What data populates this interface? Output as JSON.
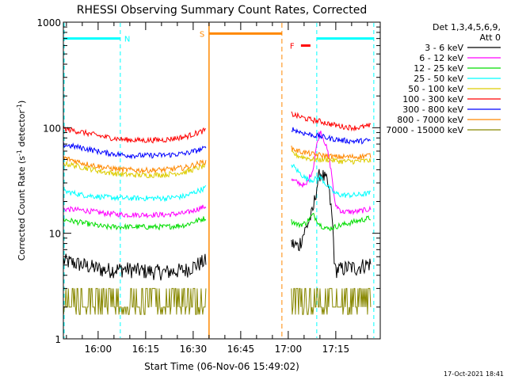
{
  "chart_data": {
    "type": "line",
    "title": "RHESSI Observing Summary Count Rates, Corrected",
    "xlabel": "Start Time (06-Nov-06 15:49:02)",
    "ylabel_main": "Corrected Count Rate (s",
    "ylabel_sup1": "-1",
    "ylabel_mid": " detector",
    "ylabel_sup2": "-1",
    "ylabel_end": ")",
    "yscale": "log",
    "ylim": [
      1,
      1000
    ],
    "yticks": [
      {
        "value": 1,
        "label": "1"
      },
      {
        "value": 10,
        "label": "10"
      },
      {
        "value": 100,
        "label": "100"
      },
      {
        "value": 1000,
        "label": "1000"
      }
    ],
    "xlim": [
      "15:49:02",
      "17:29:02"
    ],
    "xticks": [
      {
        "time": "16:00",
        "label": "16:00"
      },
      {
        "time": "16:15",
        "label": "16:15"
      },
      {
        "time": "16:30",
        "label": "16:30"
      },
      {
        "time": "16:45",
        "label": "16:45"
      },
      {
        "time": "17:00",
        "label": "17:00"
      },
      {
        "time": "17:15",
        "label": "17:15"
      }
    ],
    "legend": {
      "header_line1": "Det 1,3,4,5,6,9,",
      "header_line2": "Att 0",
      "placement": "right"
    },
    "series": [
      {
        "name": "3 - 6 keV",
        "color": "#000000",
        "before": [
          5.5,
          5.0,
          4.5,
          4.6,
          4.4,
          4.3,
          4.5,
          5.5
        ],
        "after": [
          8,
          7.5,
          11,
          16,
          38,
          30,
          4.5,
          4.6,
          4.8,
          4.7,
          5.0,
          5.2
        ]
      },
      {
        "name": "6 - 12 keV",
        "color": "#ff00ff",
        "before": [
          17,
          16.5,
          15.5,
          15,
          15,
          15,
          15.5,
          18
        ],
        "after": [
          32,
          30,
          28,
          40,
          95,
          60,
          19,
          16,
          16,
          16,
          16.5,
          17
        ]
      },
      {
        "name": "12 - 25 keV",
        "color": "#00dd00",
        "before": [
          13.5,
          12.5,
          11.5,
          11.5,
          11.5,
          11.5,
          12,
          14
        ],
        "after": [
          13,
          12,
          12.5,
          15,
          12,
          11,
          11.5,
          12,
          12.5,
          13,
          13.5,
          14
        ]
      },
      {
        "name": "25 - 50 keV",
        "color": "#00ffff",
        "before": [
          25,
          23,
          22,
          21.5,
          21.5,
          21.5,
          22.5,
          27
        ],
        "after": [
          45,
          38,
          33,
          32,
          34,
          28,
          24,
          23,
          23,
          23,
          23.5,
          24
        ]
      },
      {
        "name": "50 - 100 keV",
        "color": "#ddcc00",
        "before": [
          46,
          42,
          38,
          36,
          35.5,
          36,
          38,
          44
        ],
        "after": [
          58,
          54,
          52,
          50,
          50,
          50,
          49,
          48,
          48,
          48,
          48.5,
          49
        ]
      },
      {
        "name": "100 - 300 keV",
        "color": "#ff0000",
        "before": [
          98,
          90,
          82,
          77,
          76,
          77,
          82,
          95
        ],
        "after": [
          135,
          128,
          122,
          118,
          115,
          110,
          106,
          103,
          101,
          100,
          102,
          104
        ]
      },
      {
        "name": "300 - 800 keV",
        "color": "#0000ff",
        "before": [
          69,
          64,
          58,
          55,
          54.5,
          55,
          57,
          64
        ],
        "after": [
          98,
          92,
          88,
          85,
          83,
          80,
          78,
          76,
          75,
          74.5,
          75,
          76
        ]
      },
      {
        "name": "800 - 7000 keV",
        "color": "#ff8800",
        "before": [
          52,
          46,
          42,
          40,
          39.5,
          40,
          42,
          48
        ],
        "after": [
          64,
          60,
          58,
          56,
          55,
          54,
          53,
          53,
          53,
          53,
          54,
          55
        ]
      },
      {
        "name": "7000 - 15000 keV",
        "color": "#888800",
        "before": [
          2.5,
          2.2,
          2.0,
          2.0,
          1.9,
          1.9,
          2.0,
          2.4
        ],
        "after": [
          2.4,
          2.2,
          2.0,
          2.0,
          1.9,
          1.9,
          2.2,
          2.4,
          2.6,
          2.6,
          2.6,
          2.6
        ]
      }
    ],
    "data_gap": {
      "start": "16:34",
      "end": "17:01"
    },
    "markers": {
      "night": [
        {
          "label": "N",
          "start": "15:49",
          "end": "16:07",
          "color": "#00ffff"
        },
        {
          "label": "",
          "start": "17:09",
          "end": "17:27",
          "color": "#00ffff"
        }
      ],
      "saa": {
        "label": "S",
        "start": "16:35",
        "end": "16:58",
        "color": "#ff8800"
      },
      "flare": {
        "label": "F",
        "start": "17:04",
        "end": "17:07",
        "color": "#ff0000"
      }
    },
    "grid": false
  },
  "footer": {
    "timestamp": "17-Oct-2021 18:41"
  }
}
